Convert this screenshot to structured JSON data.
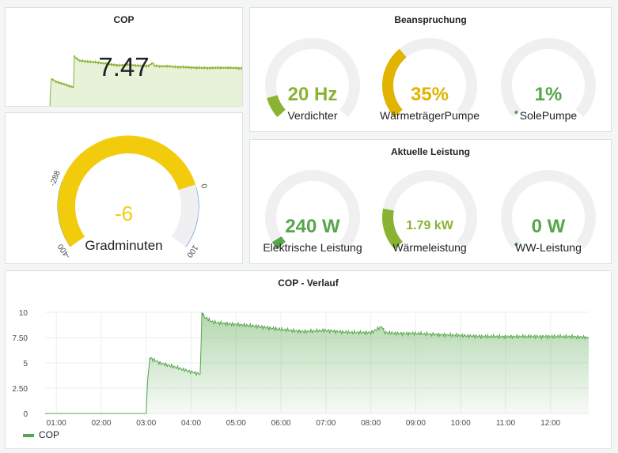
{
  "colors": {
    "green": "#56a64b",
    "olive": "#8ab334",
    "yellow": "#e0b400",
    "gauge_yellow": "#f2cc0c",
    "blue": "#3274d9",
    "track": "#f0f0f2",
    "area_fill": "#e8f2d8"
  },
  "cop_panel": {
    "title": "COP",
    "value": "7.47"
  },
  "grad_panel": {
    "value": "-6",
    "label": "Gradminuten",
    "ticks": [
      "-400",
      "-288",
      "0",
      "100"
    ]
  },
  "bean_panel": {
    "title": "Beanspruchung",
    "gauges": [
      {
        "value": "20 Hz",
        "label": "Verdichter",
        "fraction": 0.1,
        "color": "#8ab334"
      },
      {
        "value": "35%",
        "label": "WärmeträgerPumpe",
        "fraction": 0.35,
        "color": "#e0b400"
      },
      {
        "value": "1%",
        "label": "SolePumpe",
        "fraction": 0.01,
        "color": "#56a64b"
      }
    ]
  },
  "leist_panel": {
    "title": "Aktuelle Leistung",
    "gauges": [
      {
        "value": "240 W",
        "label": "Elektrische Leistung",
        "fraction": 0.04,
        "color": "#56a64b"
      },
      {
        "value": "1.79 kW",
        "label": "Wärmeleistung",
        "fraction": 0.2,
        "color": "#8ab334"
      },
      {
        "value": "0 W",
        "label": "WW-Leistung",
        "fraction": 0.0,
        "color": "#56a64b"
      }
    ]
  },
  "chart_data": {
    "type": "area",
    "title": "COP - Verlauf",
    "xlabel": "",
    "ylabel": "",
    "x_ticks": [
      "01:00",
      "02:00",
      "03:00",
      "04:00",
      "05:00",
      "06:00",
      "07:00",
      "08:00",
      "09:00",
      "10:00",
      "11:00",
      "12:00"
    ],
    "y_ticks": [
      "0",
      "2.50",
      "5",
      "7.50",
      "10"
    ],
    "ylim": [
      0,
      10
    ],
    "xlim": [
      0.75,
      12.85
    ],
    "legend": "bottom-left",
    "series": [
      {
        "name": "COP",
        "color": "#56a64b",
        "points": [
          [
            0.75,
            0
          ],
          [
            3.0,
            0
          ],
          [
            3.03,
            3.2
          ],
          [
            3.08,
            5.5
          ],
          [
            3.3,
            5.0
          ],
          [
            3.7,
            4.5
          ],
          [
            4.0,
            4.1
          ],
          [
            4.2,
            3.9
          ],
          [
            4.22,
            6.5
          ],
          [
            4.24,
            10
          ],
          [
            4.3,
            9.5
          ],
          [
            4.5,
            9.0
          ],
          [
            5.0,
            8.8
          ],
          [
            5.5,
            8.6
          ],
          [
            6.0,
            8.3
          ],
          [
            6.5,
            8.1
          ],
          [
            7.0,
            8.2
          ],
          [
            7.5,
            8.0
          ],
          [
            8.0,
            8.0
          ],
          [
            8.25,
            8.6
          ],
          [
            8.3,
            8.0
          ],
          [
            8.6,
            7.9
          ],
          [
            9.0,
            7.9
          ],
          [
            9.5,
            7.8
          ],
          [
            10.0,
            7.7
          ],
          [
            10.5,
            7.6
          ],
          [
            11.0,
            7.6
          ],
          [
            11.5,
            7.6
          ],
          [
            12.0,
            7.6
          ],
          [
            12.5,
            7.6
          ],
          [
            12.85,
            7.5
          ]
        ]
      }
    ]
  }
}
